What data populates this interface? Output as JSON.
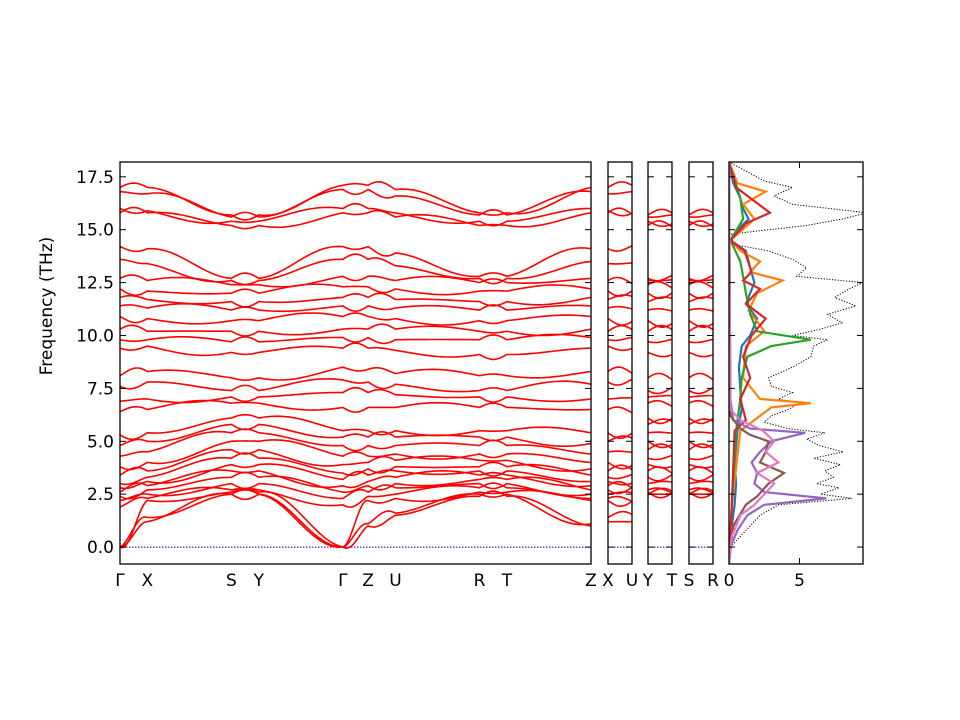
{
  "chart_data": {
    "type": "line",
    "ylabel": "Frequency (THz)",
    "ylim": [
      -0.8,
      18.2
    ],
    "yticks": [
      0.0,
      2.5,
      5.0,
      7.5,
      10.0,
      12.5,
      15.0,
      17.5
    ],
    "ytick_labels": [
      "0.0",
      "2.5",
      "5.0",
      "7.5",
      "10.0",
      "12.5",
      "15.0",
      "17.5"
    ],
    "band_color": "#ff0000",
    "zero_line_color": "#0000cc",
    "band_panels": [
      {
        "segments": [
          {
            "from": "Γ",
            "to": "X",
            "length": 1.3
          },
          {
            "from": "X",
            "to": "S",
            "length": 4.0
          },
          {
            "from": "S",
            "to": "Y",
            "length": 1.3
          },
          {
            "from": "Y",
            "to": "Γ",
            "length": 4.0
          },
          {
            "from": "Γ",
            "to": "Z",
            "length": 1.2
          },
          {
            "from": "Z",
            "to": "U",
            "length": 1.3
          },
          {
            "from": "U",
            "to": "R",
            "length": 4.0
          },
          {
            "from": "R",
            "to": "T",
            "length": 1.3
          },
          {
            "from": "T",
            "to": "Z",
            "length": 4.0
          }
        ],
        "tick_labels": [
          "Γ",
          "X",
          "S",
          "Y",
          "Γ",
          "Z",
          "U",
          "R",
          "T",
          "Z"
        ]
      },
      {
        "segments": [
          {
            "from": "X",
            "to": "U",
            "length": 1.2
          }
        ],
        "tick_labels": [
          "X",
          "U"
        ]
      },
      {
        "segments": [
          {
            "from": "Y",
            "to": "T",
            "length": 1.2
          }
        ],
        "tick_labels": [
          "Y",
          "T"
        ]
      },
      {
        "segments": [
          {
            "from": "S",
            "to": "R",
            "length": 1.2
          }
        ],
        "tick_labels": [
          "S",
          "R"
        ]
      }
    ],
    "branch_frequencies_at_points": {
      "points": [
        "Γ",
        "X",
        "S",
        "Y",
        "Γ",
        "Z",
        "U",
        "R",
        "T",
        "Z"
      ],
      "bands": [
        [
          0.0,
          1.2,
          2.5,
          2.5,
          0.0,
          1.0,
          1.5,
          2.4,
          2.4,
          1.0
        ],
        [
          0.0,
          1.4,
          2.5,
          2.5,
          0.0,
          1.1,
          1.6,
          2.5,
          2.5,
          1.1
        ],
        [
          0.0,
          2.2,
          2.6,
          2.6,
          0.0,
          2.2,
          2.3,
          2.6,
          2.6,
          2.2
        ],
        [
          1.9,
          2.3,
          2.7,
          2.7,
          2.0,
          2.4,
          2.5,
          2.8,
          2.8,
          2.3
        ],
        [
          2.2,
          2.5,
          3.0,
          3.0,
          2.3,
          2.6,
          2.8,
          3.0,
          3.0,
          2.5
        ],
        [
          2.4,
          2.7,
          3.3,
          3.3,
          2.6,
          2.9,
          3.0,
          3.2,
          3.2,
          2.7
        ],
        [
          2.6,
          2.9,
          3.6,
          3.6,
          2.9,
          3.1,
          3.3,
          3.4,
          3.4,
          2.9
        ],
        [
          2.8,
          3.1,
          3.9,
          3.9,
          3.2,
          3.4,
          3.6,
          3.6,
          3.6,
          3.1
        ],
        [
          3.0,
          3.3,
          4.2,
          4.2,
          3.5,
          3.7,
          3.8,
          3.8,
          3.8,
          3.4
        ],
        [
          3.4,
          3.6,
          4.6,
          4.6,
          3.9,
          4.0,
          4.1,
          4.1,
          4.1,
          3.7
        ],
        [
          3.8,
          4.0,
          5.0,
          5.0,
          4.3,
          4.3,
          4.4,
          4.4,
          4.4,
          4.0
        ],
        [
          4.3,
          4.5,
          5.4,
          5.4,
          4.8,
          4.8,
          4.8,
          4.8,
          4.8,
          4.4
        ],
        [
          4.8,
          5.0,
          5.8,
          5.8,
          5.2,
          5.2,
          5.2,
          5.2,
          5.2,
          4.9
        ],
        [
          5.3,
          5.4,
          6.1,
          6.1,
          5.5,
          5.5,
          5.5,
          5.5,
          5.5,
          5.4
        ],
        [
          6.4,
          6.5,
          6.8,
          6.8,
          6.6,
          6.6,
          6.6,
          6.6,
          6.6,
          6.5
        ],
        [
          6.9,
          7.0,
          7.1,
          7.1,
          7.3,
          7.3,
          7.2,
          7.1,
          7.1,
          7.0
        ],
        [
          7.6,
          7.8,
          7.4,
          7.4,
          7.9,
          7.8,
          7.7,
          7.4,
          7.4,
          7.7
        ],
        [
          8.1,
          8.3,
          8.0,
          8.0,
          8.5,
          8.4,
          8.2,
          8.1,
          8.1,
          8.3
        ],
        [
          9.4,
          9.5,
          9.2,
          9.2,
          9.4,
          9.4,
          9.3,
          9.1,
          9.1,
          9.4
        ],
        [
          9.8,
          9.8,
          9.7,
          9.7,
          9.9,
          9.9,
          9.8,
          9.8,
          9.8,
          9.9
        ],
        [
          10.3,
          10.2,
          10.2,
          10.2,
          10.3,
          10.3,
          10.3,
          10.2,
          10.2,
          10.3
        ],
        [
          10.9,
          10.8,
          10.7,
          10.7,
          10.9,
          10.9,
          10.8,
          10.7,
          10.7,
          10.9
        ],
        [
          11.4,
          11.3,
          11.2,
          11.2,
          11.4,
          11.4,
          11.3,
          11.2,
          11.2,
          11.4
        ],
        [
          11.8,
          11.7,
          11.6,
          11.6,
          11.8,
          11.8,
          11.7,
          11.6,
          11.6,
          11.8
        ],
        [
          12.2,
          12.1,
          12.0,
          12.0,
          12.3,
          12.3,
          12.2,
          12.1,
          12.1,
          12.2
        ],
        [
          12.7,
          12.6,
          12.4,
          12.4,
          12.8,
          12.8,
          12.6,
          12.5,
          12.5,
          12.7
        ],
        [
          13.6,
          13.4,
          12.6,
          12.6,
          13.6,
          13.6,
          13.3,
          12.7,
          12.7,
          13.5
        ],
        [
          14.2,
          14.1,
          12.7,
          12.7,
          14.2,
          14.2,
          13.9,
          12.8,
          12.8,
          14.1
        ],
        [
          15.8,
          15.8,
          15.2,
          15.2,
          15.8,
          15.8,
          15.6,
          15.2,
          15.2,
          15.8
        ],
        [
          16.0,
          15.9,
          15.4,
          15.4,
          16.0,
          16.0,
          15.8,
          15.4,
          15.4,
          16.0
        ],
        [
          16.8,
          16.7,
          15.6,
          15.6,
          16.9,
          16.9,
          16.6,
          15.7,
          15.7,
          16.8
        ],
        [
          17.0,
          17.0,
          15.7,
          15.7,
          17.1,
          17.1,
          16.9,
          15.8,
          15.8,
          17.0
        ]
      ]
    },
    "dos_panel": {
      "xlim": [
        0,
        9.5
      ],
      "xticks": [
        0,
        5
      ],
      "xtick_labels": [
        "0",
        "5"
      ],
      "total_style": "dotted",
      "total_color": "#000000",
      "total": {
        "freq": [
          -0.8,
          0.0,
          0.5,
          1.0,
          1.5,
          2.0,
          2.3,
          2.5,
          2.8,
          3.0,
          3.3,
          3.6,
          3.9,
          4.2,
          4.5,
          4.8,
          5.1,
          5.4,
          5.6,
          5.9,
          6.2,
          6.5,
          6.8,
          7.0,
          7.3,
          7.6,
          8.0,
          8.5,
          9.0,
          9.5,
          9.8,
          10.0,
          10.3,
          10.6,
          11.0,
          11.4,
          11.8,
          12.2,
          12.5,
          12.8,
          13.2,
          13.6,
          14.0,
          14.3,
          14.8,
          15.2,
          15.5,
          15.8,
          16.2,
          16.6,
          17.0,
          17.3,
          18.2
        ],
        "dos": [
          0,
          0.1,
          0.8,
          1.5,
          2.2,
          3.5,
          8.7,
          6.5,
          7.8,
          6.2,
          7.4,
          6.8,
          7.9,
          6.0,
          8.1,
          6.4,
          5.5,
          6.8,
          4.2,
          2.5,
          3.0,
          4.2,
          5.0,
          3.5,
          4.5,
          3.0,
          2.8,
          4.5,
          5.8,
          6.0,
          7.0,
          4.5,
          6.5,
          8.0,
          7.0,
          9.0,
          7.5,
          8.5,
          9.5,
          4.8,
          5.5,
          4.5,
          2.8,
          0.3,
          0.2,
          5.5,
          8.0,
          9.8,
          4.5,
          3.2,
          4.5,
          2.5,
          0
        ]
      },
      "projected": [
        {
          "color": "#1f77b4",
          "freq": [
            -0.8,
            0.5,
            2.0,
            3.0,
            4.0,
            5.5,
            6.5,
            7.5,
            8.5,
            9.5,
            10.0,
            10.8,
            11.5,
            12.5,
            13.2,
            14.0,
            14.5,
            15.0,
            15.5,
            16.0,
            16.5,
            17.2,
            18.2
          ],
          "dos": [
            0,
            0.1,
            0.4,
            0.5,
            0.4,
            0.6,
            0.9,
            0.8,
            0.7,
            0.9,
            1.5,
            2.0,
            1.2,
            1.8,
            1.5,
            1.2,
            0.1,
            0.6,
            1.4,
            1.0,
            0.8,
            0.3,
            0
          ]
        },
        {
          "color": "#ff7f0e",
          "freq": [
            -0.8,
            2.0,
            5.5,
            6.6,
            6.8,
            7.0,
            8.0,
            9.5,
            10.2,
            11.2,
            12.0,
            12.6,
            13.0,
            13.5,
            14.0,
            14.5,
            15.5,
            16.2,
            16.8,
            17.2,
            18.2
          ],
          "dos": [
            0,
            0.2,
            0.8,
            3.0,
            5.8,
            2.2,
            1.0,
            1.2,
            2.5,
            1.4,
            2.0,
            3.8,
            1.5,
            2.2,
            0.8,
            0.1,
            1.8,
            1.0,
            2.6,
            0.6,
            0
          ]
        },
        {
          "color": "#2ca02c",
          "freq": [
            -0.8,
            2.0,
            5.5,
            7.0,
            8.0,
            9.0,
            9.5,
            9.8,
            10.2,
            11.0,
            12.0,
            12.8,
            13.5,
            14.5,
            15.5,
            16.5,
            18.2
          ],
          "dos": [
            0,
            0.2,
            0.5,
            0.8,
            0.9,
            1.3,
            3.0,
            5.8,
            2.0,
            1.5,
            1.2,
            1.0,
            0.8,
            0.1,
            1.0,
            0.8,
            0
          ]
        },
        {
          "color": "#d62728",
          "freq": [
            -0.8,
            2.0,
            5.5,
            6.0,
            7.0,
            8.0,
            9.0,
            10.0,
            10.8,
            11.5,
            12.2,
            12.6,
            13.0,
            14.0,
            14.5,
            15.3,
            15.8,
            16.5,
            17.0,
            18.2
          ],
          "dos": [
            0,
            0.2,
            0.4,
            1.2,
            0.8,
            1.5,
            1.0,
            1.6,
            2.6,
            1.2,
            2.2,
            1.0,
            1.6,
            1.1,
            0.1,
            1.2,
            2.9,
            1.5,
            0.5,
            0
          ]
        },
        {
          "color": "#9467bd",
          "freq": [
            -0.8,
            0.0,
            0.8,
            1.5,
            2.0,
            2.3,
            2.6,
            3.0,
            3.5,
            4.0,
            4.5,
            5.0,
            5.4,
            5.6,
            6.0,
            7.0,
            18.2
          ],
          "dos": [
            0,
            0.1,
            0.6,
            1.3,
            2.5,
            6.9,
            2.5,
            1.8,
            2.0,
            1.6,
            2.2,
            3.0,
            5.4,
            1.5,
            0.3,
            0.1,
            0
          ]
        },
        {
          "color": "#8c564b",
          "freq": [
            -0.8,
            1.0,
            2.0,
            2.4,
            3.0,
            3.5,
            4.0,
            4.5,
            5.0,
            5.3,
            5.6,
            6.2,
            18.2
          ],
          "dos": [
            0,
            0.3,
            1.2,
            2.0,
            2.8,
            3.9,
            2.2,
            2.6,
            2.8,
            1.5,
            0.8,
            0.1,
            0
          ]
        },
        {
          "color": "#e377c2",
          "freq": [
            -0.8,
            0.5,
            1.5,
            2.0,
            2.5,
            3.0,
            3.5,
            4.0,
            4.5,
            5.0,
            5.5,
            6.0,
            6.5,
            18.2
          ],
          "dos": [
            0,
            0.2,
            0.8,
            1.8,
            2.5,
            3.2,
            2.0,
            3.5,
            2.6,
            3.2,
            2.4,
            0.8,
            0.1,
            0
          ]
        }
      ]
    }
  }
}
